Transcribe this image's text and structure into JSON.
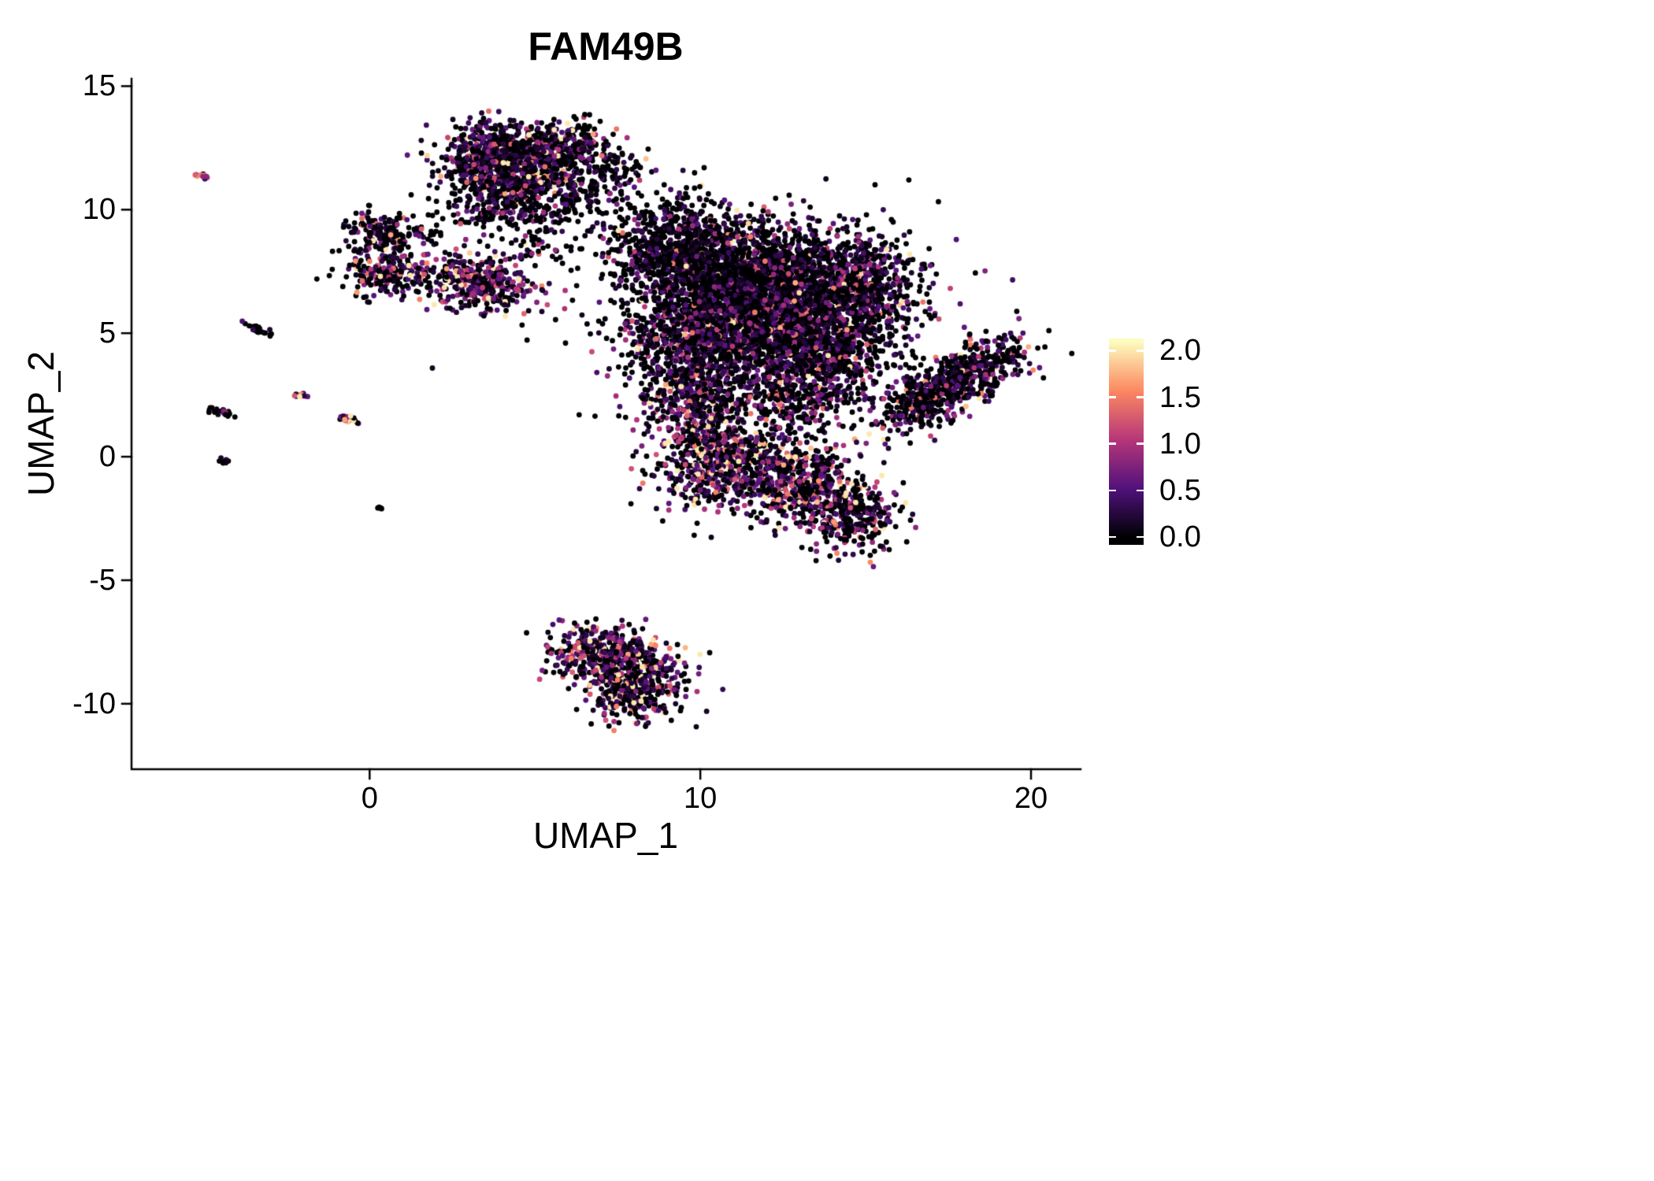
{
  "chart_data": {
    "type": "scatter",
    "title": "FAM49B",
    "xlabel": "UMAP_1",
    "ylabel": "UMAP_2",
    "xlim": [
      -7.2,
      21.5
    ],
    "ylim": [
      -12.65,
      15.3
    ],
    "grid": false,
    "legend_position": "right",
    "point_radius_px": 3.4,
    "x_ticks": [
      {
        "value": 0,
        "label": "0"
      },
      {
        "value": 10,
        "label": "10"
      },
      {
        "value": 20,
        "label": "20"
      }
    ],
    "y_ticks": [
      {
        "value": 15,
        "label": "15"
      },
      {
        "value": 10,
        "label": "10"
      },
      {
        "value": 5,
        "label": "5"
      },
      {
        "value": 0,
        "label": "0"
      },
      {
        "value": -5,
        "label": "-5"
      },
      {
        "value": -10,
        "label": "-10"
      }
    ],
    "colorbar": {
      "colormap": "magma",
      "domain": [
        0,
        2.1
      ],
      "ticks": [
        {
          "value": 2.0,
          "label": "2.0"
        },
        {
          "value": 1.5,
          "label": "1.5"
        },
        {
          "value": 1.0,
          "label": "1.0"
        },
        {
          "value": 0.5,
          "label": "0.5"
        },
        {
          "value": 0.0,
          "label": "0.0"
        }
      ],
      "stops": [
        [
          0.0,
          "#000004"
        ],
        [
          0.25,
          "#51127c"
        ],
        [
          0.5,
          "#b73779"
        ],
        [
          0.75,
          "#fc8961"
        ],
        [
          1.0,
          "#fcfdbf"
        ]
      ]
    },
    "clusters": [
      {
        "name": "top-core",
        "cx": 4.1,
        "cy": 11.9,
        "sx": 1.0,
        "sy": 0.75,
        "rot": -10,
        "n": 900,
        "p0": 0.35,
        "m": 0.55
      },
      {
        "name": "top-east",
        "cx": 6.0,
        "cy": 12.6,
        "sx": 0.7,
        "sy": 0.45,
        "rot": 0,
        "n": 250,
        "p0": 0.45,
        "m": 0.5
      },
      {
        "name": "top-south",
        "cx": 4.6,
        "cy": 10.3,
        "sx": 1.1,
        "sy": 0.6,
        "rot": 0,
        "n": 300,
        "p0": 0.5,
        "m": 0.45
      },
      {
        "name": "top-trail",
        "cx": 6.8,
        "cy": 10.8,
        "sx": 0.7,
        "sy": 0.7,
        "rot": 40,
        "n": 110,
        "p0": 0.6,
        "m": 0.4
      },
      {
        "name": "top-trail2",
        "cx": 7.7,
        "cy": 11.6,
        "sx": 0.5,
        "sy": 0.45,
        "rot": 0,
        "n": 45,
        "p0": 0.55,
        "m": 0.4
      },
      {
        "name": "bridge-left",
        "cx": 1.8,
        "cy": 9.1,
        "sx": 0.65,
        "sy": 0.45,
        "rot": 20,
        "n": 30,
        "p0": 0.6,
        "m": 0.4
      },
      {
        "name": "left-upper",
        "cx": 0.35,
        "cy": 9.1,
        "sx": 0.55,
        "sy": 0.45,
        "rot": 0,
        "n": 160,
        "p0": 0.5,
        "m": 0.5
      },
      {
        "name": "left-lower",
        "cx": 0.6,
        "cy": 7.4,
        "sx": 0.7,
        "sy": 0.5,
        "rot": 0,
        "n": 200,
        "p0": 0.45,
        "m": 0.6
      },
      {
        "name": "mid-left",
        "cx": 3.3,
        "cy": 7.1,
        "sx": 0.85,
        "sy": 0.55,
        "rot": -15,
        "n": 380,
        "p0": 0.25,
        "m": 0.75
      },
      {
        "name": "mid-sparse",
        "cx": 5.2,
        "cy": 8.8,
        "sx": 0.8,
        "sy": 0.5,
        "rot": 0,
        "n": 40,
        "p0": 0.5,
        "m": 0.5
      },
      {
        "name": "main-nw",
        "cx": 9.4,
        "cy": 8.4,
        "sx": 1.05,
        "sy": 0.95,
        "rot": 0,
        "n": 850,
        "p0": 0.55,
        "m": 0.4
      },
      {
        "name": "main-core",
        "cx": 12.2,
        "cy": 7.0,
        "sx": 1.35,
        "sy": 1.15,
        "rot": 0,
        "n": 1700,
        "p0": 0.5,
        "m": 0.45
      },
      {
        "name": "main-sw",
        "cx": 10.4,
        "cy": 4.9,
        "sx": 1.3,
        "sy": 1.1,
        "rot": 0,
        "n": 1100,
        "p0": 0.42,
        "m": 0.5
      },
      {
        "name": "main-se",
        "cx": 13.7,
        "cy": 4.4,
        "sx": 1.0,
        "sy": 0.95,
        "rot": 0,
        "n": 650,
        "p0": 0.45,
        "m": 0.5
      },
      {
        "name": "main-ne",
        "cx": 15.2,
        "cy": 6.8,
        "sx": 0.75,
        "sy": 1.05,
        "rot": 0,
        "n": 420,
        "p0": 0.4,
        "m": 0.55
      },
      {
        "name": "main-halo",
        "cx": 11.8,
        "cy": 6.0,
        "sx": 2.6,
        "sy": 2.1,
        "rot": 0,
        "n": 700,
        "p0": 0.6,
        "m": 0.35
      },
      {
        "name": "main-appendage",
        "cx": 9.8,
        "cy": 2.0,
        "sx": 0.75,
        "sy": 1.1,
        "rot": 10,
        "n": 420,
        "p0": 0.35,
        "m": 0.6
      },
      {
        "name": "main-south",
        "cx": 12.9,
        "cy": 2.4,
        "sx": 0.9,
        "sy": 0.8,
        "rot": 0,
        "n": 300,
        "p0": 0.45,
        "m": 0.55
      },
      {
        "name": "wing-right",
        "cx": 17.5,
        "cy": 2.9,
        "sx": 1.35,
        "sy": 0.5,
        "rot": 38,
        "n": 750,
        "p0": 0.45,
        "m": 0.55
      },
      {
        "name": "lower-west",
        "cx": 10.4,
        "cy": -0.5,
        "sx": 0.85,
        "sy": 0.85,
        "rot": 0,
        "n": 380,
        "p0": 0.3,
        "m": 0.8
      },
      {
        "name": "lower-mid",
        "cx": 12.9,
        "cy": -1.2,
        "sx": 1.05,
        "sy": 0.8,
        "rot": -15,
        "n": 520,
        "p0": 0.35,
        "m": 0.7
      },
      {
        "name": "lower-east",
        "cx": 14.7,
        "cy": -2.5,
        "sx": 0.65,
        "sy": 0.7,
        "rot": -35,
        "n": 260,
        "p0": 0.45,
        "m": 0.6
      },
      {
        "name": "lower-streak",
        "cx": 11.6,
        "cy": 0.3,
        "sx": 0.9,
        "sy": 0.45,
        "rot": -20,
        "n": 150,
        "p0": 0.4,
        "m": 0.7
      },
      {
        "name": "bottom-nw",
        "cx": 7.0,
        "cy": -7.9,
        "sx": 0.75,
        "sy": 0.55,
        "rot": 0,
        "n": 380,
        "p0": 0.3,
        "m": 0.7
      },
      {
        "name": "bottom-se",
        "cx": 8.1,
        "cy": -9.2,
        "sx": 0.75,
        "sy": 0.75,
        "rot": -30,
        "n": 420,
        "p0": 0.3,
        "m": 0.7
      },
      {
        "name": "satellite-1",
        "cx": -5.1,
        "cy": 11.4,
        "sx": 0.12,
        "sy": 0.05,
        "rot": -25,
        "n": 14,
        "p0": 0.1,
        "m": 1.2
      },
      {
        "name": "satellite-2",
        "cx": -3.35,
        "cy": 5.15,
        "sx": 0.22,
        "sy": 0.06,
        "rot": -25,
        "n": 26,
        "p0": 0.8,
        "m": 0.3
      },
      {
        "name": "satellite-3",
        "cx": -4.55,
        "cy": 1.85,
        "sx": 0.22,
        "sy": 0.07,
        "rot": -25,
        "n": 26,
        "p0": 0.7,
        "m": 0.4
      },
      {
        "name": "satellite-4",
        "cx": -2.1,
        "cy": 2.5,
        "sx": 0.16,
        "sy": 0.06,
        "rot": -25,
        "n": 18,
        "p0": 0.15,
        "m": 1.1
      },
      {
        "name": "satellite-5",
        "cx": -0.65,
        "cy": 1.55,
        "sx": 0.22,
        "sy": 0.07,
        "rot": -30,
        "n": 24,
        "p0": 0.1,
        "m": 1.4
      },
      {
        "name": "satellite-6",
        "cx": -4.4,
        "cy": -0.15,
        "sx": 0.08,
        "sy": 0.05,
        "rot": 0,
        "n": 8,
        "p0": 0.85,
        "m": 0.3
      },
      {
        "name": "satellite-7",
        "cx": 0.3,
        "cy": -2.1,
        "sx": 0.06,
        "sy": 0.05,
        "rot": 0,
        "n": 5,
        "p0": 0.9,
        "m": 0.2
      }
    ]
  }
}
